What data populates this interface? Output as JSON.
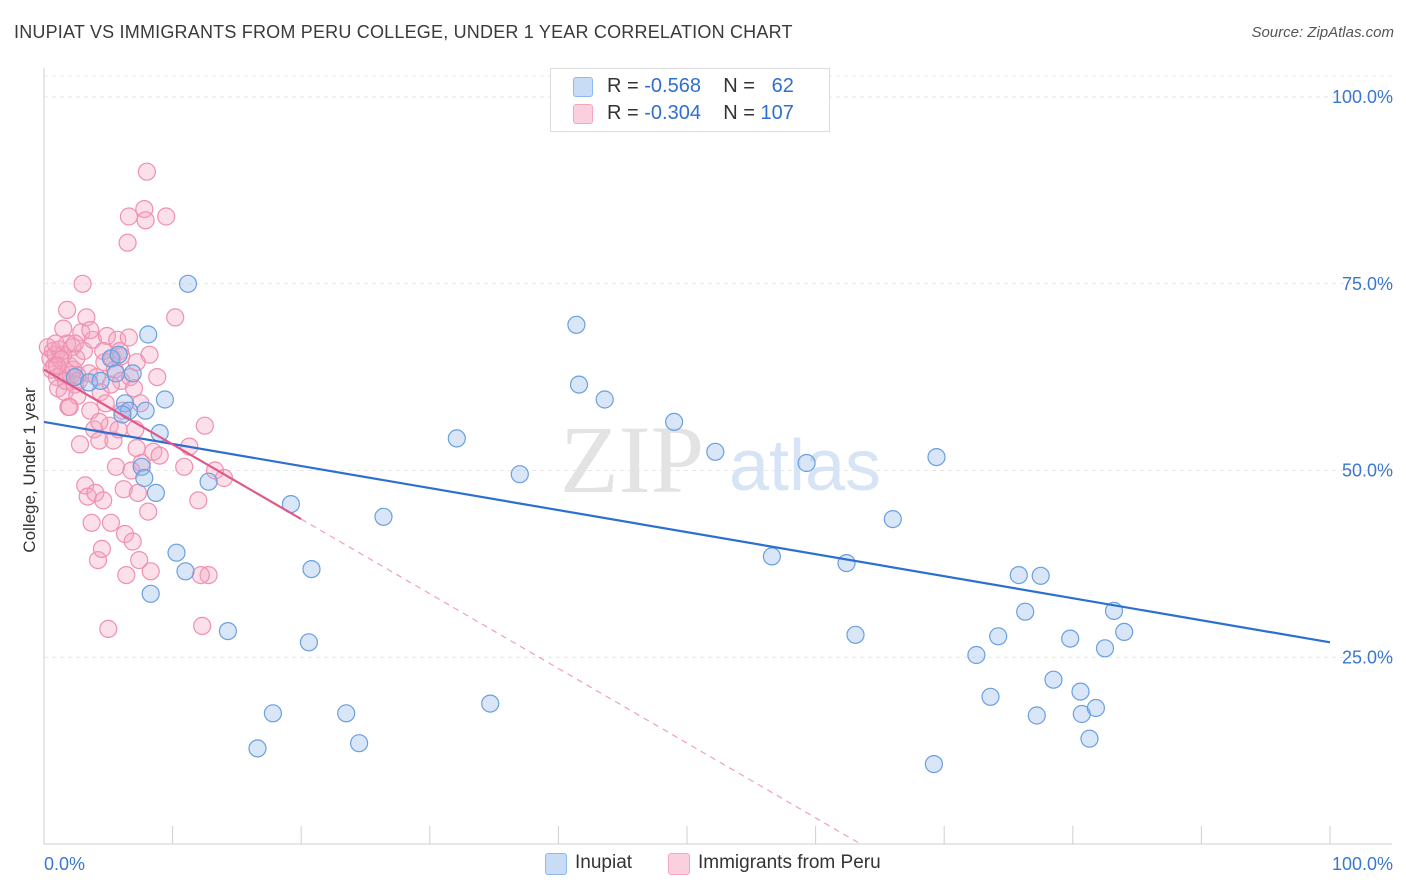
{
  "title": "INUPIAT VS IMMIGRANTS FROM PERU COLLEGE, UNDER 1 YEAR CORRELATION CHART",
  "source": "Source: ZipAtlas.com",
  "watermark": {
    "zip": "ZIP",
    "atlas": "atlas"
  },
  "legend": {
    "rows": [
      {
        "r_label": "R = ",
        "r_value": "-0.568",
        "n_label": "N = ",
        "n_value": "62",
        "color": "#8fb8ec"
      },
      {
        "r_label": "R = ",
        "r_value": "-0.304",
        "n_label": "N = ",
        "n_value": "107",
        "color": "#f4a6c0"
      }
    ]
  },
  "bottom_legend": [
    {
      "label": "Inupiat",
      "color": "#8fb8ec"
    },
    {
      "label": "Immigrants from Peru",
      "color": "#f4a6c0"
    }
  ],
  "chart_data": {
    "type": "scatter",
    "xlabel": "",
    "ylabel": "College, Under 1 year",
    "xlim": [
      0,
      100
    ],
    "ylim": [
      0,
      100
    ],
    "x_tick_labels": [
      "0.0%",
      "100.0%"
    ],
    "y_ticks": [
      25,
      50,
      75,
      100
    ],
    "y_tick_labels": [
      "25.0%",
      "50.0%",
      "75.0%",
      "100.0%"
    ],
    "grid": true,
    "series": [
      {
        "name": "Inupiat",
        "color": "#6a9fe0",
        "trend": {
          "x": [
            0,
            100
          ],
          "y": [
            56.5,
            27.0
          ],
          "color": "#2c6fd1"
        },
        "points": [
          [
            5.2,
            65.0
          ],
          [
            5.6,
            63.0
          ],
          [
            5.8,
            65.5
          ],
          [
            6.3,
            59.0
          ],
          [
            6.6,
            58.0
          ],
          [
            6.9,
            63.0
          ],
          [
            7.6,
            50.5
          ],
          [
            7.8,
            49.0
          ],
          [
            7.9,
            58.0
          ],
          [
            8.1,
            68.2
          ],
          [
            8.3,
            33.5
          ],
          [
            8.7,
            47.0
          ],
          [
            9.4,
            59.5
          ],
          [
            10.3,
            39.0
          ],
          [
            11.0,
            36.5
          ],
          [
            11.2,
            75.0
          ],
          [
            12.8,
            48.5
          ],
          [
            14.3,
            28.5
          ],
          [
            16.6,
            12.8
          ],
          [
            17.8,
            17.5
          ],
          [
            19.2,
            45.5
          ],
          [
            20.6,
            27.0
          ],
          [
            20.8,
            36.8
          ],
          [
            23.5,
            17.5
          ],
          [
            24.5,
            13.5
          ],
          [
            26.4,
            43.8
          ],
          [
            32.1,
            54.3
          ],
          [
            34.7,
            18.8
          ],
          [
            37.0,
            49.5
          ],
          [
            41.4,
            69.5
          ],
          [
            41.6,
            61.5
          ],
          [
            43.6,
            59.5
          ],
          [
            49.0,
            56.5
          ],
          [
            52.2,
            52.5
          ],
          [
            56.6,
            38.5
          ],
          [
            59.3,
            51.0
          ],
          [
            62.4,
            37.6
          ],
          [
            63.1,
            28.0
          ],
          [
            66.0,
            43.5
          ],
          [
            69.2,
            10.7
          ],
          [
            69.4,
            51.8
          ],
          [
            72.5,
            25.3
          ],
          [
            73.6,
            19.7
          ],
          [
            74.2,
            27.8
          ],
          [
            75.8,
            36.0
          ],
          [
            76.3,
            31.1
          ],
          [
            77.2,
            17.2
          ],
          [
            77.5,
            35.9
          ],
          [
            78.5,
            22.0
          ],
          [
            79.8,
            27.5
          ],
          [
            80.6,
            20.4
          ],
          [
            80.7,
            17.4
          ],
          [
            81.3,
            14.1
          ],
          [
            81.8,
            18.2
          ],
          [
            82.5,
            26.2
          ],
          [
            83.2,
            31.2
          ],
          [
            84.0,
            28.4
          ],
          [
            2.4,
            62.5
          ],
          [
            3.5,
            61.8
          ],
          [
            4.4,
            62.0
          ],
          [
            6.1,
            57.5
          ],
          [
            9.0,
            55.0
          ]
        ]
      },
      {
        "name": "Immigrants from Peru",
        "color": "#f08fb0",
        "trend": {
          "x": [
            0,
            20
          ],
          "y": [
            63.5,
            43.5
          ],
          "color": "#e0588a"
        },
        "trend_ext": {
          "x": [
            20,
            63.5
          ],
          "y": [
            43.5,
            0
          ]
        },
        "points": [
          [
            0.3,
            66.5
          ],
          [
            0.5,
            65.0
          ],
          [
            0.6,
            63.5
          ],
          [
            0.7,
            66.0
          ],
          [
            0.8,
            64.0
          ],
          [
            0.9,
            65.5
          ],
          [
            1.0,
            62.5
          ],
          [
            1.1,
            61.0
          ],
          [
            1.2,
            66.2
          ],
          [
            1.3,
            64.8
          ],
          [
            1.4,
            63.0
          ],
          [
            1.5,
            65.5
          ],
          [
            1.6,
            60.5
          ],
          [
            1.7,
            62.0
          ],
          [
            1.8,
            67.0
          ],
          [
            1.9,
            58.5
          ],
          [
            2.0,
            64.0
          ],
          [
            2.1,
            62.8
          ],
          [
            2.2,
            66.5
          ],
          [
            2.3,
            63.5
          ],
          [
            2.4,
            61.5
          ],
          [
            2.5,
            65.0
          ],
          [
            2.6,
            60.0
          ],
          [
            2.7,
            62.0
          ],
          [
            2.8,
            53.5
          ],
          [
            2.9,
            68.5
          ],
          [
            3.0,
            75.0
          ],
          [
            3.1,
            66.0
          ],
          [
            3.2,
            48.0
          ],
          [
            3.3,
            70.5
          ],
          [
            3.4,
            46.5
          ],
          [
            3.5,
            63.0
          ],
          [
            3.6,
            58.0
          ],
          [
            3.7,
            43.0
          ],
          [
            3.8,
            67.5
          ],
          [
            3.9,
            55.5
          ],
          [
            4.0,
            47.0
          ],
          [
            4.1,
            62.5
          ],
          [
            4.2,
            38.0
          ],
          [
            4.3,
            54.0
          ],
          [
            4.4,
            60.5
          ],
          [
            4.5,
            39.5
          ],
          [
            4.6,
            46.0
          ],
          [
            4.7,
            64.5
          ],
          [
            4.8,
            59.0
          ],
          [
            4.9,
            68.0
          ],
          [
            5.0,
            28.8
          ],
          [
            5.1,
            56.0
          ],
          [
            5.2,
            43.0
          ],
          [
            5.3,
            65.0
          ],
          [
            5.4,
            54.0
          ],
          [
            5.5,
            63.5
          ],
          [
            5.6,
            50.5
          ],
          [
            5.7,
            67.5
          ],
          [
            5.8,
            55.5
          ],
          [
            5.9,
            66.0
          ],
          [
            6.0,
            62.0
          ],
          [
            6.1,
            58.0
          ],
          [
            6.2,
            47.5
          ],
          [
            6.3,
            41.5
          ],
          [
            6.4,
            36.0
          ],
          [
            6.5,
            80.5
          ],
          [
            6.6,
            84.0
          ],
          [
            6.7,
            62.5
          ],
          [
            6.8,
            50.0
          ],
          [
            6.9,
            40.5
          ],
          [
            7.0,
            61.0
          ],
          [
            7.1,
            55.5
          ],
          [
            7.2,
            53.0
          ],
          [
            7.3,
            47.0
          ],
          [
            7.4,
            38.0
          ],
          [
            7.5,
            59.0
          ],
          [
            7.6,
            51.0
          ],
          [
            7.8,
            85.0
          ],
          [
            7.9,
            83.5
          ],
          [
            8.0,
            90.0
          ],
          [
            8.1,
            44.5
          ],
          [
            8.2,
            65.5
          ],
          [
            8.3,
            36.5
          ],
          [
            8.5,
            52.5
          ],
          [
            8.8,
            62.5
          ],
          [
            9.0,
            52.0
          ],
          [
            9.5,
            84.0
          ],
          [
            10.2,
            70.5
          ],
          [
            10.9,
            50.5
          ],
          [
            12.0,
            46.0
          ],
          [
            12.3,
            29.2
          ],
          [
            12.5,
            56.0
          ],
          [
            12.8,
            36.0
          ],
          [
            13.3,
            50.0
          ],
          [
            14.0,
            49.0
          ],
          [
            1.8,
            71.5
          ],
          [
            2.0,
            58.5
          ],
          [
            2.4,
            67.0
          ],
          [
            3.6,
            68.8
          ],
          [
            4.3,
            56.5
          ],
          [
            5.2,
            61.5
          ],
          [
            6.0,
            65.3
          ],
          [
            6.6,
            67.8
          ],
          [
            7.2,
            64.5
          ],
          [
            11.3,
            53.2
          ],
          [
            12.2,
            36.0
          ],
          [
            1.0,
            64.0
          ],
          [
            1.5,
            69.0
          ],
          [
            0.9,
            67.0
          ],
          [
            2.6,
            62.7
          ],
          [
            4.6,
            66.0
          ]
        ]
      }
    ]
  }
}
